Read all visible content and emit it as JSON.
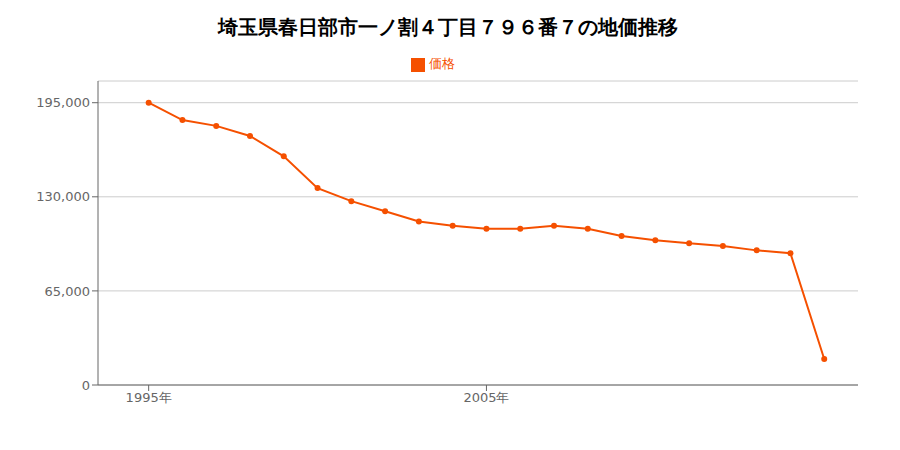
{
  "chart_data": {
    "type": "line",
    "title": "埼玉県春日部市一ノ割４丁目７９６番７の地価推移",
    "x": [
      1995,
      1996,
      1997,
      1998,
      1999,
      2000,
      2001,
      2002,
      2003,
      2004,
      2005,
      2006,
      2007,
      2008,
      2009,
      2010,
      2011,
      2012,
      2013,
      2014,
      2015
    ],
    "series": [
      {
        "name": "価格",
        "color": "#f55000",
        "marker": "circle",
        "values": [
          195000,
          183000,
          179000,
          172000,
          158000,
          136000,
          127000,
          120000,
          113000,
          110000,
          108000,
          108000,
          110000,
          108000,
          103000,
          100000,
          98000,
          96000,
          93000,
          91000,
          18000
        ]
      }
    ],
    "xlim": [
      1993.5,
      2016
    ],
    "xticks": [
      {
        "value": 1995,
        "label": "1995年"
      },
      {
        "value": 2005,
        "label": "2005年"
      }
    ],
    "ylim": [
      0,
      210000
    ],
    "yticks": [
      0,
      {
        "value": 65000,
        "label": "65,000"
      },
      {
        "value": 130000,
        "label": "130,000"
      },
      {
        "value": 195000,
        "label": "195,000"
      }
    ],
    "grid": true,
    "legend": "top"
  }
}
